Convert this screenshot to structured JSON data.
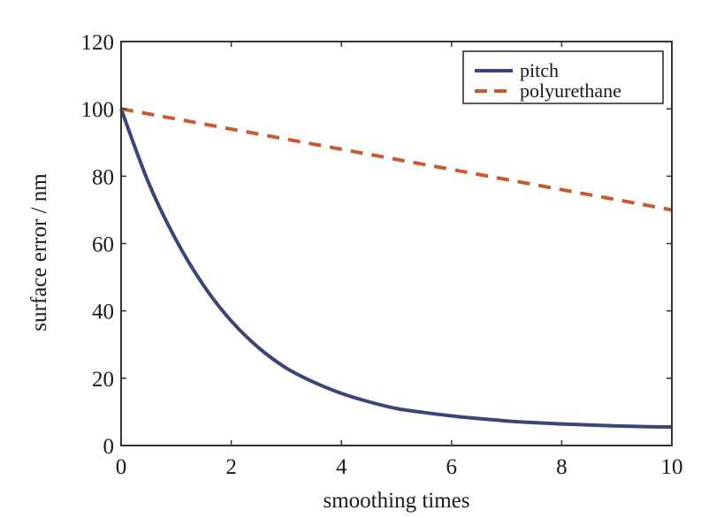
{
  "chart_data": {
    "type": "line",
    "title": "",
    "xlabel": "smoothing times",
    "ylabel": "surface error / nm",
    "xlim": [
      0,
      10
    ],
    "ylim": [
      0,
      120
    ],
    "xticks": [
      0,
      2,
      4,
      6,
      8,
      10
    ],
    "xtick_labels": [
      "0",
      "2",
      "4",
      "6",
      "8",
      "10"
    ],
    "yticks": [
      0,
      20,
      40,
      60,
      80,
      100,
      120
    ],
    "ytick_labels": [
      "0",
      "20",
      "40",
      "60",
      "80",
      "100",
      "120"
    ],
    "grid": false,
    "legend_position": "top-right",
    "series": [
      {
        "name": "pitch",
        "style": "solid",
        "color": "#3b4578",
        "x": [
          0,
          0.5,
          1,
          1.5,
          2,
          2.5,
          3,
          3.5,
          4,
          4.5,
          5,
          5.5,
          6,
          6.5,
          7,
          7.5,
          8,
          8.5,
          9,
          9.5,
          10
        ],
        "y": [
          100,
          78,
          61,
          47.5,
          37,
          29,
          23,
          18.8,
          15.5,
          13,
          11,
          9.8,
          8.8,
          8,
          7.3,
          6.8,
          6.4,
          6.1,
          5.8,
          5.6,
          5.5
        ]
      },
      {
        "name": "polyurethane",
        "style": "dashed",
        "color": "#c85a32",
        "x": [
          0,
          10
        ],
        "y": [
          100,
          70
        ]
      }
    ]
  }
}
